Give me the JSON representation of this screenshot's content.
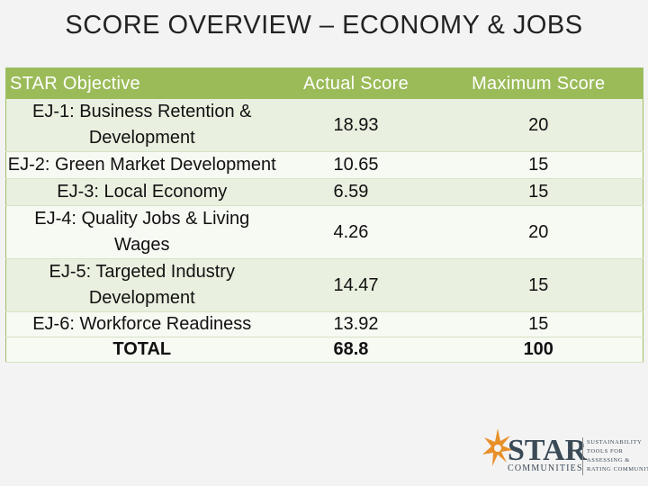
{
  "title": "SCORE OVERVIEW – ECONOMY & JOBS",
  "table": {
    "headers": [
      "STAR Objective",
      "Actual Score",
      "Maximum Score"
    ],
    "rows": [
      {
        "objective": "EJ-1: Business Retention & Development",
        "actual": "18.93",
        "max": "20"
      },
      {
        "objective": "EJ-2: Green Market Development",
        "actual": "10.65",
        "max": "15"
      },
      {
        "objective": "EJ-3: Local Economy",
        "actual": "6.59",
        "max": "15"
      },
      {
        "objective": "EJ-4: Quality Jobs & Living Wages",
        "actual": "4.26",
        "max": "20"
      },
      {
        "objective": "EJ-5: Targeted Industry Development",
        "actual": "14.47",
        "max": "15"
      },
      {
        "objective": "EJ-6: Workforce Readiness",
        "actual": "13.92",
        "max": "15"
      },
      {
        "objective": "TOTAL",
        "actual": "68.8",
        "max": "100"
      }
    ]
  },
  "logo": {
    "word": "STAR",
    "sub": "COMMUNITIES",
    "tagline": [
      "SUSTAINABILITY",
      "TOOLS FOR",
      "ASSESSING &",
      "RATING COMMUNITIES"
    ]
  },
  "colors": {
    "header_bg": "#9bbb59",
    "row_odd": "#eaf0e0",
    "row_even": "#f7f9f3",
    "logo_orange": "#e8902a"
  }
}
